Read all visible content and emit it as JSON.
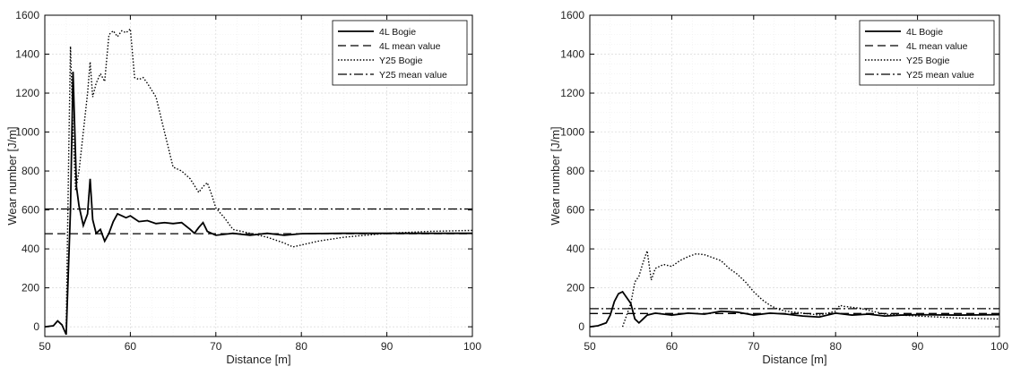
{
  "legend_labels": [
    "4L Bogie",
    "4L mean value",
    "Y25 Bogie",
    "Y25 mean value"
  ],
  "chart_data": [
    {
      "type": "line",
      "xlabel": "Distance [m]",
      "ylabel": "Wear number [J/m]",
      "xlim": [
        50,
        100
      ],
      "ylim": [
        -50,
        1600
      ],
      "xticks": [
        50,
        60,
        70,
        80,
        90,
        100
      ],
      "yticks": [
        0,
        200,
        400,
        600,
        800,
        1000,
        1200,
        1400,
        1600
      ],
      "grid": true,
      "legend_position": "top-right",
      "series": [
        {
          "name": "4L Bogie",
          "style": "solid",
          "x": [
            50,
            51,
            51.5,
            52,
            52.5,
            53,
            53.3,
            53.7,
            54,
            54.5,
            55,
            55.3,
            55.6,
            56,
            56.5,
            57,
            57.5,
            58,
            58.5,
            59,
            59.5,
            60,
            61,
            62,
            63,
            64,
            65,
            66,
            67,
            67.5,
            68,
            68.5,
            69,
            70,
            72,
            74,
            76,
            78,
            80,
            85,
            90,
            95,
            100
          ],
          "y": [
            0,
            5,
            30,
            10,
            -40,
            600,
            1310,
            720,
            620,
            520,
            580,
            760,
            550,
            480,
            500,
            440,
            480,
            540,
            580,
            570,
            560,
            570,
            540,
            545,
            530,
            535,
            530,
            535,
            500,
            480,
            510,
            535,
            490,
            470,
            480,
            470,
            480,
            470,
            478,
            480,
            480,
            480,
            480
          ]
        },
        {
          "name": "4L mean value",
          "style": "dashed",
          "x": [
            50,
            100
          ],
          "y": [
            478,
            478
          ]
        },
        {
          "name": "Y25 Bogie",
          "style": "dotted",
          "x": [
            52.5,
            52.8,
            53,
            53.3,
            53.6,
            54,
            54.5,
            55,
            55.3,
            55.6,
            56,
            56.5,
            57,
            57.5,
            58,
            58.5,
            59,
            59.5,
            60,
            60.5,
            61,
            61.5,
            62,
            63,
            64,
            65,
            66,
            67,
            68,
            68.5,
            69,
            69.5,
            70,
            71,
            72,
            74,
            76,
            78,
            79,
            80,
            82,
            85,
            90,
            95,
            100
          ],
          "y": [
            0,
            900,
            1440,
            1000,
            700,
            800,
            1000,
            1200,
            1360,
            1180,
            1250,
            1300,
            1260,
            1500,
            1520,
            1490,
            1520,
            1510,
            1530,
            1280,
            1270,
            1280,
            1250,
            1180,
            1000,
            820,
            800,
            760,
            690,
            720,
            740,
            680,
            610,
            560,
            500,
            480,
            460,
            430,
            410,
            420,
            440,
            460,
            480,
            490,
            495
          ]
        },
        {
          "name": "Y25 mean value",
          "style": "dashdot",
          "x": [
            50,
            100
          ],
          "y": [
            605,
            605
          ]
        }
      ]
    },
    {
      "type": "line",
      "xlabel": "Distance [m]",
      "ylabel": "Wear number [J/m]",
      "xlim": [
        50,
        100
      ],
      "ylim": [
        -50,
        1600
      ],
      "xticks": [
        50,
        60,
        70,
        80,
        90,
        100
      ],
      "yticks": [
        0,
        200,
        400,
        600,
        800,
        1000,
        1200,
        1400,
        1600
      ],
      "grid": true,
      "legend_position": "top-right",
      "series": [
        {
          "name": "4L Bogie",
          "style": "solid",
          "x": [
            50,
            51,
            52,
            52.5,
            53,
            53.5,
            54,
            54.5,
            55,
            55.5,
            56,
            56.5,
            57,
            58,
            59,
            60,
            62,
            64,
            66,
            68,
            70,
            72,
            74,
            76,
            78,
            80,
            82,
            84,
            86,
            88,
            90,
            95,
            100
          ],
          "y": [
            0,
            5,
            20,
            60,
            130,
            170,
            180,
            150,
            120,
            40,
            20,
            40,
            60,
            70,
            65,
            60,
            70,
            65,
            80,
            75,
            60,
            70,
            65,
            55,
            50,
            70,
            60,
            65,
            55,
            60,
            62,
            60,
            62
          ]
        },
        {
          "name": "4L mean value",
          "style": "dashed",
          "x": [
            50,
            100
          ],
          "y": [
            68,
            68
          ]
        },
        {
          "name": "Y25 Bogie",
          "style": "dotted",
          "x": [
            54,
            54.5,
            55,
            55.5,
            56,
            56.5,
            57,
            57.5,
            58,
            58.5,
            59,
            60,
            61,
            62,
            63,
            64,
            65,
            66,
            67,
            68,
            69,
            70,
            71,
            72,
            73,
            74,
            76,
            78,
            80,
            80.5,
            81,
            82,
            83,
            84,
            85,
            86,
            88,
            90,
            95,
            100
          ],
          "y": [
            0,
            60,
            120,
            230,
            260,
            330,
            390,
            240,
            300,
            310,
            320,
            310,
            340,
            360,
            375,
            370,
            355,
            340,
            300,
            270,
            230,
            180,
            140,
            110,
            90,
            80,
            70,
            60,
            80,
            110,
            105,
            100,
            95,
            85,
            75,
            65,
            60,
            55,
            45,
            40
          ]
        },
        {
          "name": "Y25 mean value",
          "style": "dashdot",
          "x": [
            50,
            100
          ],
          "y": [
            93,
            93
          ]
        }
      ]
    }
  ]
}
